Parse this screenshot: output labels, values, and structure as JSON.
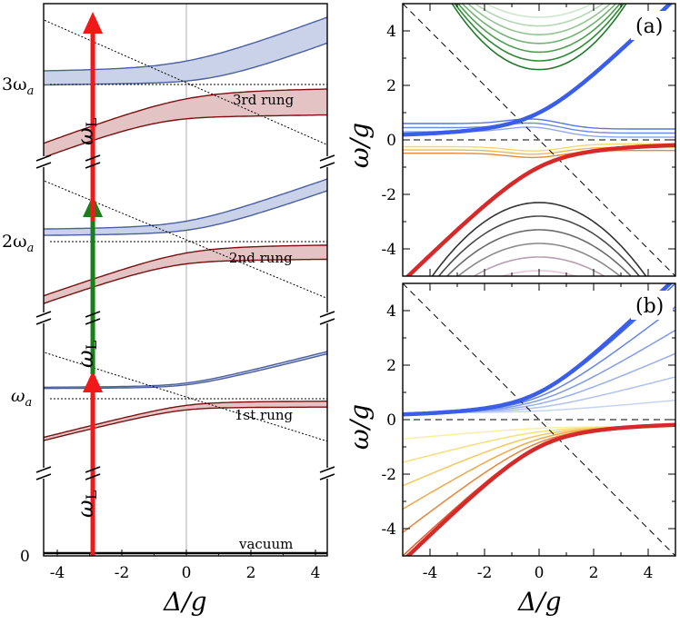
{
  "chart_data": [
    {
      "type": "line",
      "panel": "left",
      "xlabel": "Δ/g",
      "ylabel": "",
      "xlim": [
        -4.7,
        4.6
      ],
      "x_ticks": [
        "-4",
        "-2",
        "0",
        "2",
        "4"
      ],
      "y_level_labels": [
        "0",
        "ω_a",
        "2ω_a",
        "3ω_a"
      ],
      "rung_labels": [
        "vacuum",
        "1st rung",
        "2nd rung",
        "3rd rung"
      ],
      "drive_label": "ω_L",
      "drive_detuning": -2.9,
      "drive_arrows": [
        {
          "from": "vacuum",
          "to": "1st rung",
          "color": "#f01818"
        },
        {
          "from": "1st rung",
          "to": "2nd rung",
          "color": "#1a7f1a"
        },
        {
          "from": "2nd rung",
          "to": "3rd rung",
          "color": "#f01818"
        }
      ],
      "series": [
        {
          "rung": 1,
          "branches": "upper (blue) and lower (red) polariton bands"
        },
        {
          "rung": 2,
          "branches": "upper (blue) and lower (red) polariton bands"
        },
        {
          "rung": 3,
          "branches": "upper (blue) and lower (red) polariton bands"
        }
      ],
      "colors": {
        "upper": "#4a5fa0",
        "upper_fill": "#c9d2e8",
        "lower": "#7a1010",
        "lower_fill": "#e3c3c3"
      }
    },
    {
      "type": "line",
      "panel": "(a)",
      "xlabel": "",
      "ylabel": "ω/g",
      "xlim": [
        -5,
        5
      ],
      "ylim": [
        -5,
        5
      ],
      "x_ticks": [],
      "y_ticks": [
        "4",
        "2",
        "0",
        "-2",
        "-4"
      ],
      "main_curves": "ω = Δ/2 ± sqrt(Δ²/4 + 1)",
      "asymptotes": [
        "ω = -Δ",
        "ω = 0"
      ],
      "colors": {
        "upper": "#3a5ee8",
        "lower": "#d62a2a",
        "top_family": "#1f8a2a",
        "bottom_family": "#3a3a3a"
      }
    },
    {
      "type": "line",
      "panel": "(b)",
      "xlabel": "Δ/g",
      "ylabel": "ω/g",
      "xlim": [
        -5,
        5
      ],
      "ylim": [
        -5,
        5
      ],
      "x_ticks": [
        "-4",
        "-2",
        "0",
        "2",
        "4"
      ],
      "y_ticks": [
        "4",
        "2",
        "0",
        "-2",
        "-4"
      ],
      "main_curves": "ω = Δ/2 ± sqrt(Δ²/4 + 1)",
      "asymptotes": [
        "ω = -Δ",
        "ω = 0"
      ],
      "colors": {
        "upper": "#3a5ee8",
        "lower": "#d62a2a"
      }
    }
  ],
  "labels": {
    "left_xlabel": "Δ/g",
    "right_xlabel": "Δ/g",
    "ylabel_a": "ω/g",
    "ylabel_b": "ω/g",
    "panel_a": "(a)",
    "panel_b": "(b)",
    "wl": "ω",
    "wl_sub": "L",
    "lvl0": "0",
    "lvl1": "ω",
    "lvl2": "2ω",
    "lvl3": "3ω",
    "lvl_sub": "a",
    "rung0": "vacuum",
    "rung1": "1st rung",
    "rung2": "2nd rung",
    "rung3": "3rd rung",
    "lx": [
      "-4",
      "-2",
      "0",
      "2",
      "4"
    ],
    "ry": [
      "4",
      "2",
      "0",
      "-2",
      "-4"
    ],
    "rx": [
      "-4",
      "-2",
      "0",
      "2",
      "4"
    ]
  }
}
